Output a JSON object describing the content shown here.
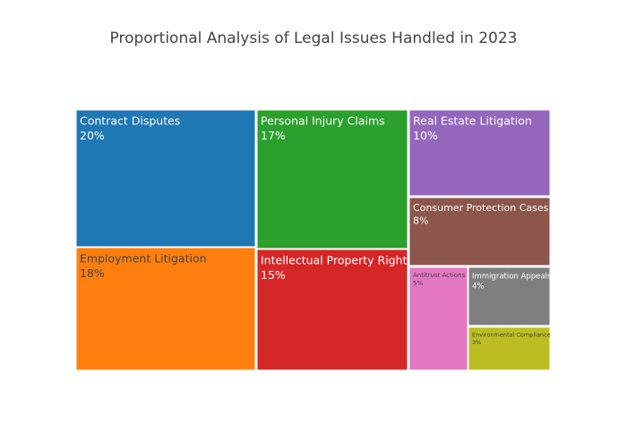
{
  "chart_data": {
    "type": "treemap",
    "title": "Proportional Analysis of Legal Issues Handled in 2023",
    "items": [
      {
        "name": "Contract Disputes",
        "value": 20,
        "value_label": "20%",
        "color": "#1f77b4",
        "text_color": "#ffffff"
      },
      {
        "name": "Employment Litigation",
        "value": 18,
        "value_label": "18%",
        "color": "#ff7f0e",
        "text_color": "#444444"
      },
      {
        "name": "Personal Injury Claims",
        "value": 17,
        "value_label": "17%",
        "color": "#2ca02c",
        "text_color": "#ffffff"
      },
      {
        "name": "Intellectual Property Rights",
        "value": 15,
        "value_label": "15%",
        "color": "#d62728",
        "text_color": "#ffffff"
      },
      {
        "name": "Real Estate Litigation",
        "value": 10,
        "value_label": "10%",
        "color": "#9467bd",
        "text_color": "#ffffff"
      },
      {
        "name": "Consumer Protection Cases",
        "value": 8,
        "value_label": "8%",
        "color": "#8c564b",
        "text_color": "#ffffff"
      },
      {
        "name": "Antitrust Actions",
        "value": 5,
        "value_label": "5%",
        "color": "#e377c2",
        "text_color": "#444444"
      },
      {
        "name": "Immigration Appeals",
        "value": 4,
        "value_label": "4%",
        "color": "#7f7f7f",
        "text_color": "#ffffff"
      },
      {
        "name": "Environmental Compliance",
        "value": 3,
        "value_label": "3%",
        "color": "#bcbd22",
        "text_color": "#444444"
      }
    ]
  }
}
